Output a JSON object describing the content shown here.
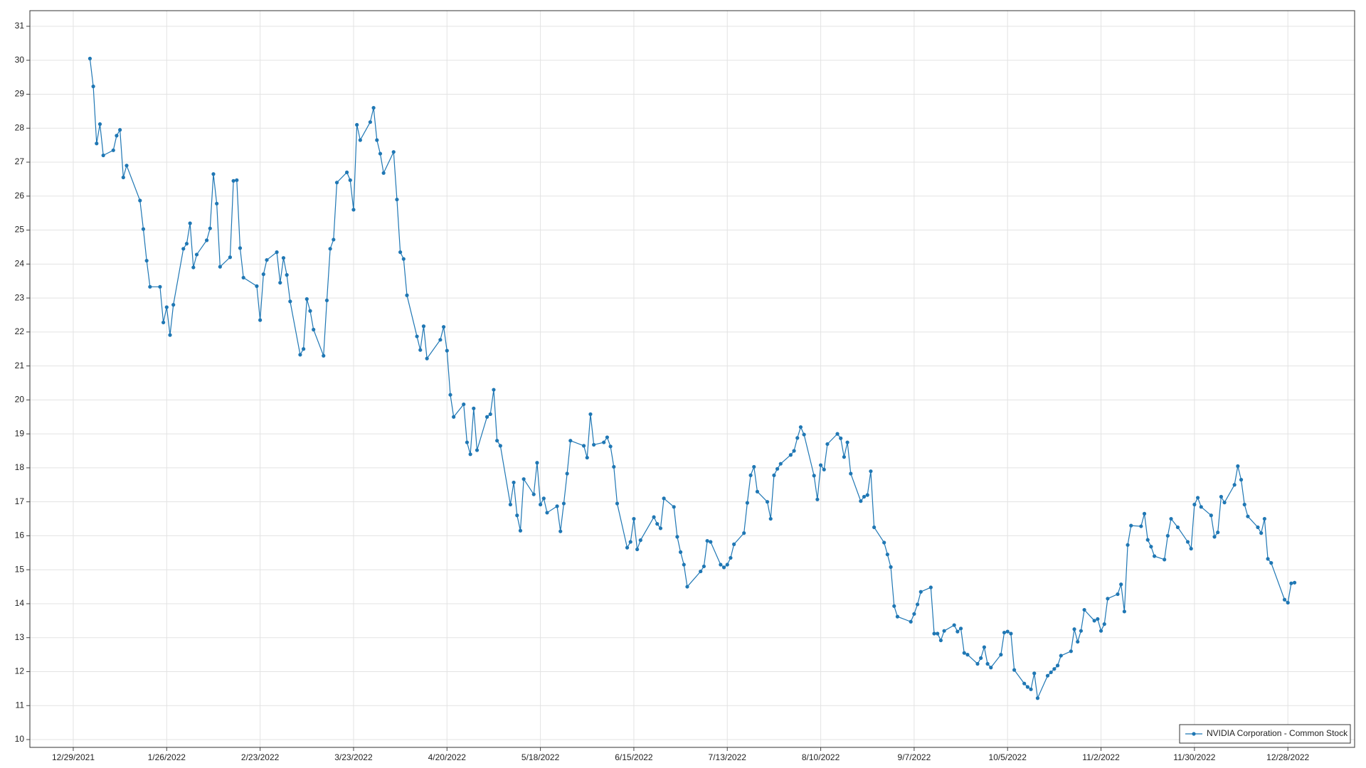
{
  "chart_data": {
    "type": "line",
    "x": [
      "1/3/2022",
      "1/4/2022",
      "1/5/2022",
      "1/6/2022",
      "1/7/2022",
      "1/10/2022",
      "1/11/2022",
      "1/12/2022",
      "1/13/2022",
      "1/14/2022",
      "1/18/2022",
      "1/19/2022",
      "1/20/2022",
      "1/21/2022",
      "1/24/2022",
      "1/25/2022",
      "1/26/2022",
      "1/27/2022",
      "1/28/2022",
      "1/31/2022",
      "2/1/2022",
      "2/2/2022",
      "2/3/2022",
      "2/4/2022",
      "2/7/2022",
      "2/8/2022",
      "2/9/2022",
      "2/10/2022",
      "2/11/2022",
      "2/14/2022",
      "2/15/2022",
      "2/16/2022",
      "2/17/2022",
      "2/18/2022",
      "2/22/2022",
      "2/23/2022",
      "2/24/2022",
      "2/25/2022",
      "2/28/2022",
      "3/1/2022",
      "3/2/2022",
      "3/3/2022",
      "3/4/2022",
      "3/7/2022",
      "3/8/2022",
      "3/9/2022",
      "3/10/2022",
      "3/11/2022",
      "3/14/2022",
      "3/15/2022",
      "3/16/2022",
      "3/17/2022",
      "3/18/2022",
      "3/21/2022",
      "3/22/2022",
      "3/23/2022",
      "3/24/2022",
      "3/25/2022",
      "3/28/2022",
      "3/29/2022",
      "3/30/2022",
      "3/31/2022",
      "4/1/2022",
      "4/4/2022",
      "4/5/2022",
      "4/6/2022",
      "4/7/2022",
      "4/8/2022",
      "4/11/2022",
      "4/12/2022",
      "4/13/2022",
      "4/14/2022",
      "4/18/2022",
      "4/19/2022",
      "4/20/2022",
      "4/21/2022",
      "4/22/2022",
      "4/25/2022",
      "4/26/2022",
      "4/27/2022",
      "4/28/2022",
      "4/29/2022",
      "5/2/2022",
      "5/3/2022",
      "5/4/2022",
      "5/5/2022",
      "5/6/2022",
      "5/9/2022",
      "5/10/2022",
      "5/11/2022",
      "5/12/2022",
      "5/13/2022",
      "5/16/2022",
      "5/17/2022",
      "5/18/2022",
      "5/19/2022",
      "5/20/2022",
      "5/23/2022",
      "5/24/2022",
      "5/25/2022",
      "5/26/2022",
      "5/27/2022",
      "5/31/2022",
      "6/1/2022",
      "6/2/2022",
      "6/3/2022",
      "6/6/2022",
      "6/7/2022",
      "6/8/2022",
      "6/9/2022",
      "6/10/2022",
      "6/13/2022",
      "6/14/2022",
      "6/15/2022",
      "6/16/2022",
      "6/17/2022",
      "6/21/2022",
      "6/22/2022",
      "6/23/2022",
      "6/24/2022",
      "6/27/2022",
      "6/28/2022",
      "6/29/2022",
      "6/30/2022",
      "7/1/2022",
      "7/5/2022",
      "7/6/2022",
      "7/7/2022",
      "7/8/2022",
      "7/11/2022",
      "7/12/2022",
      "7/13/2022",
      "7/14/2022",
      "7/15/2022",
      "7/18/2022",
      "7/19/2022",
      "7/20/2022",
      "7/21/2022",
      "7/22/2022",
      "7/25/2022",
      "7/26/2022",
      "7/27/2022",
      "7/28/2022",
      "7/29/2022",
      "8/1/2022",
      "8/2/2022",
      "8/3/2022",
      "8/4/2022",
      "8/5/2022",
      "8/8/2022",
      "8/9/2022",
      "8/10/2022",
      "8/11/2022",
      "8/12/2022",
      "8/15/2022",
      "8/16/2022",
      "8/17/2022",
      "8/18/2022",
      "8/19/2022",
      "8/22/2022",
      "8/23/2022",
      "8/24/2022",
      "8/25/2022",
      "8/26/2022",
      "8/29/2022",
      "8/30/2022",
      "8/31/2022",
      "9/1/2022",
      "9/2/2022",
      "9/6/2022",
      "9/7/2022",
      "9/8/2022",
      "9/9/2022",
      "9/12/2022",
      "9/13/2022",
      "9/14/2022",
      "9/15/2022",
      "9/16/2022",
      "9/19/2022",
      "9/20/2022",
      "9/21/2022",
      "9/22/2022",
      "9/23/2022",
      "9/26/2022",
      "9/27/2022",
      "9/28/2022",
      "9/29/2022",
      "9/30/2022",
      "10/3/2022",
      "10/4/2022",
      "10/5/2022",
      "10/6/2022",
      "10/7/2022",
      "10/10/2022",
      "10/11/2022",
      "10/12/2022",
      "10/13/2022",
      "10/14/2022",
      "10/17/2022",
      "10/18/2022",
      "10/19/2022",
      "10/20/2022",
      "10/21/2022",
      "10/24/2022",
      "10/25/2022",
      "10/26/2022",
      "10/27/2022",
      "10/28/2022",
      "10/31/2022",
      "11/1/2022",
      "11/2/2022",
      "11/3/2022",
      "11/4/2022",
      "11/7/2022",
      "11/8/2022",
      "11/9/2022",
      "11/10/2022",
      "11/11/2022",
      "11/14/2022",
      "11/15/2022",
      "11/16/2022",
      "11/17/2022",
      "11/18/2022",
      "11/21/2022",
      "11/22/2022",
      "11/23/2022",
      "11/25/2022",
      "11/28/2022",
      "11/29/2022",
      "11/30/2022",
      "12/1/2022",
      "12/2/2022",
      "12/5/2022",
      "12/6/2022",
      "12/7/2022",
      "12/8/2022",
      "12/9/2022",
      "12/12/2022",
      "12/13/2022",
      "12/14/2022",
      "12/15/2022",
      "12/16/2022",
      "12/19/2022",
      "12/20/2022",
      "12/21/2022",
      "12/22/2022",
      "12/23/2022",
      "12/27/2022",
      "12/28/2022",
      "12/29/2022",
      "12/30/2022"
    ],
    "series": [
      {
        "name": "NVIDIA Corporation - Common Stock",
        "color": "#1f77b4",
        "values": [
          30.05,
          29.23,
          27.55,
          28.12,
          27.2,
          27.35,
          27.78,
          27.95,
          26.55,
          26.9,
          25.87,
          25.03,
          24.1,
          23.33,
          23.33,
          22.28,
          22.73,
          21.91,
          22.8,
          24.45,
          24.6,
          25.2,
          23.9,
          24.28,
          24.7,
          25.05,
          26.65,
          25.78,
          23.92,
          24.2,
          26.45,
          26.47,
          24.47,
          23.6,
          23.35,
          22.35,
          23.7,
          24.12,
          24.35,
          23.45,
          24.18,
          23.68,
          22.9,
          21.33,
          21.5,
          22.97,
          22.62,
          22.07,
          21.3,
          22.93,
          24.45,
          24.72,
          26.4,
          26.7,
          26.47,
          25.6,
          28.1,
          27.65,
          28.18,
          28.6,
          27.65,
          27.25,
          26.68,
          27.3,
          25.9,
          24.35,
          24.15,
          23.08,
          21.87,
          21.47,
          22.17,
          21.22,
          21.77,
          22.15,
          21.45,
          20.15,
          19.5,
          19.87,
          18.75,
          18.4,
          19.75,
          18.52,
          19.5,
          19.58,
          20.3,
          18.8,
          18.65,
          16.92,
          17.57,
          16.6,
          16.15,
          17.67,
          17.22,
          18.15,
          16.92,
          17.1,
          16.68,
          16.87,
          16.13,
          16.95,
          17.83,
          18.8,
          18.65,
          18.3,
          19.58,
          18.68,
          18.75,
          18.9,
          18.63,
          18.03,
          16.95,
          15.65,
          15.82,
          16.5,
          15.6,
          15.87,
          16.55,
          16.35,
          16.22,
          17.1,
          16.85,
          15.97,
          15.52,
          15.15,
          14.5,
          14.95,
          15.1,
          15.85,
          15.82,
          15.15,
          15.07,
          15.15,
          15.35,
          15.75,
          16.08,
          16.97,
          17.78,
          18.03,
          17.3,
          17.0,
          16.5,
          17.78,
          17.97,
          18.12,
          18.38,
          18.5,
          18.88,
          19.2,
          18.98,
          17.77,
          17.07,
          18.08,
          17.95,
          18.7,
          19.0,
          18.87,
          18.32,
          18.75,
          17.83,
          17.02,
          17.15,
          17.2,
          17.9,
          16.25,
          15.8,
          15.45,
          15.08,
          13.93,
          13.62,
          13.47,
          13.7,
          13.98,
          14.35,
          14.48,
          13.12,
          13.12,
          12.92,
          13.2,
          13.37,
          13.18,
          13.27,
          12.55,
          12.5,
          12.23,
          12.4,
          12.72,
          12.23,
          12.12,
          12.5,
          13.15,
          13.18,
          13.12,
          12.05,
          11.65,
          11.55,
          11.48,
          11.95,
          11.22,
          11.88,
          11.98,
          12.08,
          12.18,
          12.47,
          12.6,
          13.25,
          12.88,
          13.2,
          13.82,
          13.5,
          13.55,
          13.2,
          13.4,
          14.15,
          14.28,
          14.57,
          13.77,
          15.73,
          16.3,
          16.28,
          16.65,
          15.88,
          15.68,
          15.4,
          15.3,
          16.0,
          16.5,
          16.25,
          15.82,
          15.62,
          16.92,
          17.12,
          16.85,
          16.6,
          15.97,
          16.1,
          17.15,
          16.98,
          17.5,
          18.05,
          17.65,
          16.92,
          16.57,
          16.25,
          16.08,
          16.5,
          15.32,
          15.2,
          14.12,
          14.03,
          14.6,
          14.62
        ]
      }
    ],
    "xlim": [
      "12/16/2021",
      "1/17/2023"
    ],
    "xticks": [
      "12/29/2021",
      "1/26/2022",
      "2/23/2022",
      "3/23/2022",
      "4/20/2022",
      "5/18/2022",
      "6/15/2022",
      "7/13/2022",
      "8/10/2022",
      "9/7/2022",
      "10/5/2022",
      "11/2/2022",
      "11/30/2022",
      "12/28/2022"
    ],
    "ylim": [
      9.77,
      31.46
    ],
    "yticks": [
      10,
      11,
      12,
      13,
      14,
      15,
      16,
      17,
      18,
      19,
      20,
      21,
      22,
      23,
      24,
      25,
      26,
      27,
      28,
      29,
      30,
      31
    ],
    "grid": true,
    "legend": "lower right"
  }
}
